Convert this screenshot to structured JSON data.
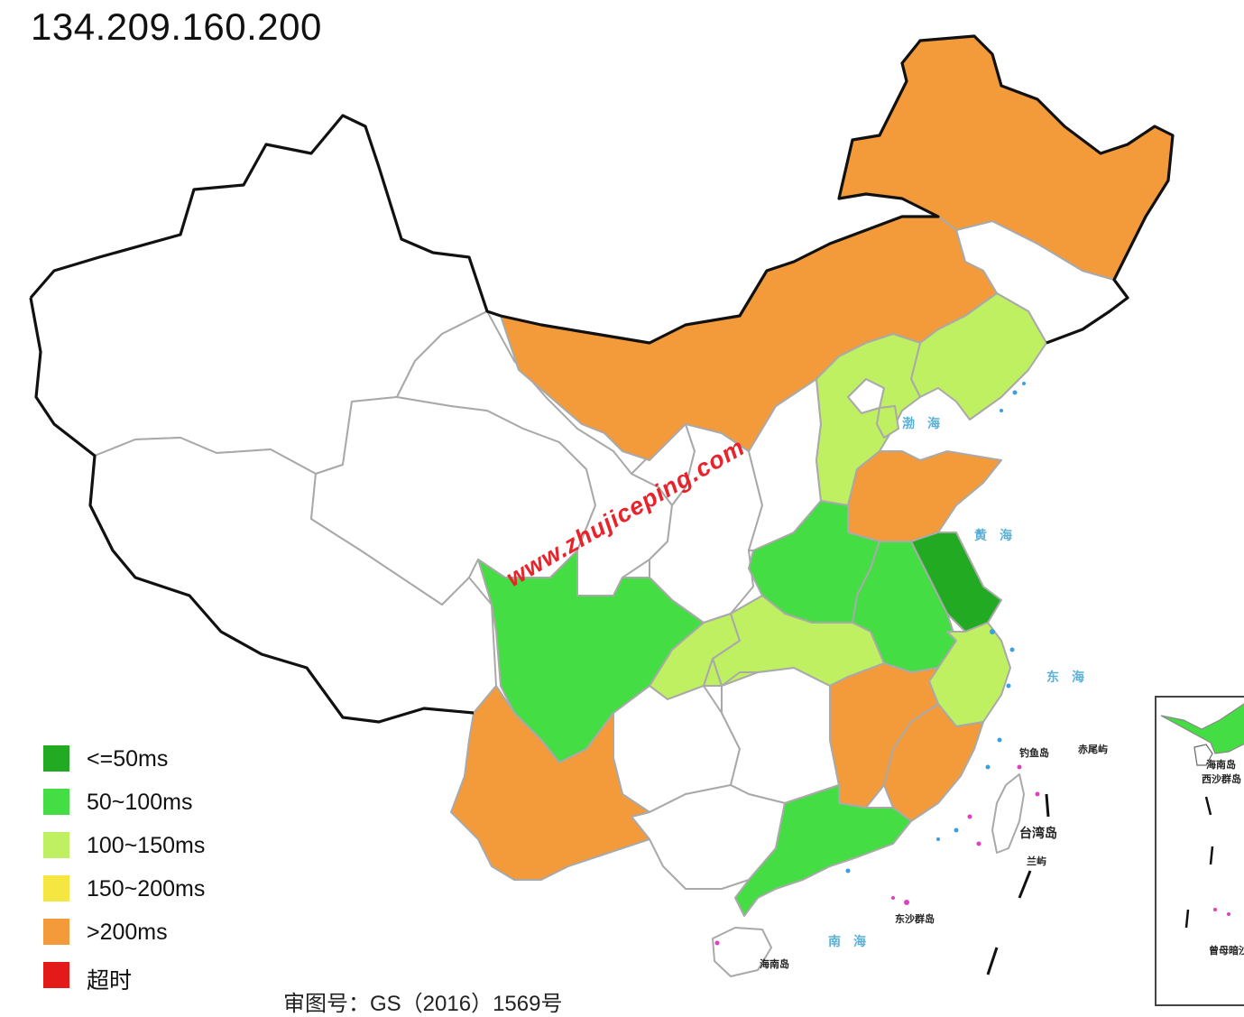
{
  "title": "134.209.160.200",
  "watermark": "www.zhujiceping.com",
  "legend": [
    {
      "label": "<=50ms",
      "color": "#22aa22"
    },
    {
      "label": "50~100ms",
      "color": "#44dd44"
    },
    {
      "label": "100~150ms",
      "color": "#bff062"
    },
    {
      "label": "150~200ms",
      "color": "#f5e642"
    },
    {
      "label": ">200ms",
      "color": "#f39a3b"
    },
    {
      "label": "超时",
      "color": "#e41a1a"
    }
  ],
  "map_labels": {
    "bohai": "渤海",
    "huanghai": "黄海",
    "donghai": "东海",
    "nanhai": "南海",
    "diaoyu": "钓鱼岛",
    "chiwei": "赤尾屿",
    "taiwan": "台湾岛",
    "lanyu": "兰屿",
    "dongsha": "东沙群岛",
    "hainan": "海南岛",
    "inset_hainan": "海南岛",
    "inset_xisha": "西沙群岛",
    "inset_zengmu": "曾母暗沙"
  },
  "footnote": "审图号：GS（2016）1569号",
  "province_latency": {
    "heilongjiang": ">200ms",
    "jilin": "none",
    "liaoning": "100~150ms",
    "neimenggu": ">200ms",
    "hebei": "100~150ms",
    "beijing": "none",
    "tianjin": "100~150ms",
    "shandong": ">200ms",
    "jiangsu": "<=50ms",
    "shanghai": "<=50ms",
    "henan": "50~100ms",
    "anhui": "50~100ms",
    "hubei": "100~150ms",
    "zhejiang": "100~150ms",
    "jiangxi": ">200ms",
    "fujian": ">200ms",
    "guangdong": "50~100ms",
    "hainan": "none",
    "sichuan": "50~100ms",
    "chongqing": "100~150ms",
    "yunnan": ">200ms",
    "xinjiang": "none",
    "xizang": "none",
    "qinghai": "none",
    "gansu": "none",
    "ningxia": "none",
    "shaanxi": "none",
    "shanxi": "none",
    "guizhou": "none",
    "hunan": "none",
    "guangxi": "none",
    "taiwan": "none"
  }
}
